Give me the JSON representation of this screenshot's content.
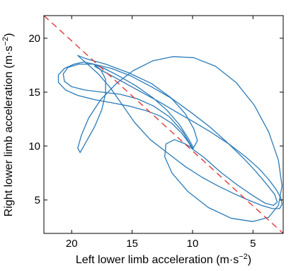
{
  "chart_data": {
    "type": "line",
    "xlabel": "Left lower limb acceleration (m·s",
    "xlabel_sup": "−2",
    "xlabel_end": ")",
    "ylabel": "Right lower limb acceleration (m·s",
    "ylabel_sup": "−2",
    "ylabel_end": ")",
    "x_reversed": true,
    "y_reversed": true,
    "xlim": [
      22.3,
      2.5
    ],
    "ylim": [
      22.1,
      1.9
    ],
    "xticks": [
      20,
      15,
      10,
      5
    ],
    "yticks": [
      5,
      10,
      15,
      20
    ],
    "xtick_labels": [
      "20",
      "15",
      "10",
      "5"
    ],
    "ytick_labels": [
      "5",
      "10",
      "15",
      "20"
    ],
    "grid": false,
    "series": [
      {
        "color": "#2b7bb9",
        "style": "solid",
        "x": [
          10.0,
          9.6,
          9.9,
          10.6,
          11.8,
          13.4,
          15.3,
          17.2,
          18.8,
          19.5,
          19.3,
          18.7,
          17.8,
          16.8,
          15.8,
          14.8,
          13.5,
          12.0,
          10.6,
          9.2,
          7.9,
          6.6,
          5.4,
          4.3,
          3.4,
          2.8,
          2.6,
          2.7,
          3.1,
          3.7,
          4.5,
          5.6,
          7.0,
          8.5,
          10.0,
          11.4,
          12.6,
          13.9,
          15.2,
          16.5,
          17.5,
          18.1,
          18.0,
          17.3,
          16.1,
          14.7,
          13.3,
          12.1,
          11.1,
          10.4,
          10.0,
          10.0
        ],
        "y": [
          9.7,
          10.5,
          11.6,
          13.0,
          14.5,
          15.8,
          16.8,
          17.6,
          18.1,
          18.4,
          18.2,
          17.6,
          16.7,
          15.4,
          13.8,
          12.2,
          10.6,
          9.3,
          8.1,
          7.1,
          6.3,
          5.6,
          5.0,
          4.5,
          4.2,
          4.2,
          4.6,
          5.2,
          6.0,
          6.9,
          7.9,
          9.0,
          10.2,
          11.3,
          12.3,
          13.2,
          14.0,
          14.8,
          15.6,
          16.4,
          17.0,
          17.4,
          17.5,
          17.2,
          16.5,
          15.6,
          14.5,
          13.3,
          12.0,
          10.8,
          10.0,
          9.7
        ]
      },
      {
        "color": "#2b7bb9",
        "style": "solid",
        "x": [
          10.0,
          10.8,
          11.9,
          13.2,
          14.6,
          16.0,
          17.5,
          18.9,
          20.0,
          20.6,
          20.7,
          20.3,
          19.4,
          18.2,
          16.7,
          15.1,
          13.4,
          11.7,
          10.1,
          8.6,
          7.2,
          5.9,
          4.8,
          3.9,
          3.2,
          3.0,
          3.3,
          4.0,
          5.0,
          6.3,
          7.7,
          9.0,
          10.1,
          10.0
        ],
        "y": [
          9.8,
          11.3,
          12.7,
          13.7,
          14.4,
          14.8,
          15.0,
          15.2,
          15.5,
          16.0,
          16.7,
          17.3,
          17.6,
          17.6,
          17.2,
          16.5,
          15.5,
          14.4,
          13.1,
          11.8,
          10.4,
          9.0,
          7.7,
          6.5,
          5.5,
          4.8,
          4.5,
          4.7,
          5.4,
          6.4,
          7.6,
          8.9,
          9.8,
          9.8
        ]
      },
      {
        "color": "#2b7bb9",
        "style": "solid",
        "x": [
          10.0,
          10.3,
          10.9,
          11.7,
          12.7,
          13.9,
          15.2,
          16.6,
          18.1,
          19.5,
          20.5,
          21.1,
          21.1,
          20.6,
          19.8,
          19.0,
          18.2,
          17.6,
          17.2,
          17.2,
          17.5,
          18.1,
          18.8,
          19.3,
          19.5,
          19.2,
          18.6,
          17.6,
          16.3,
          14.9,
          13.3,
          11.6,
          9.9,
          8.1,
          6.4,
          4.9,
          3.7,
          2.9,
          2.6,
          2.9,
          3.7,
          5.0,
          6.8,
          8.7,
          10.4,
          11.7,
          12.3,
          12.2,
          11.5,
          10.6,
          10.0
        ],
        "y": [
          9.7,
          10.3,
          11.2,
          12.1,
          12.8,
          13.3,
          13.7,
          14.0,
          14.3,
          14.7,
          15.2,
          15.9,
          16.6,
          17.2,
          17.6,
          17.8,
          17.6,
          17.1,
          16.2,
          14.9,
          13.4,
          11.8,
          10.4,
          9.4,
          9.8,
          11.0,
          12.6,
          14.3,
          15.8,
          17.0,
          17.9,
          18.3,
          18.2,
          17.4,
          15.9,
          13.8,
          11.3,
          8.7,
          6.3,
          4.5,
          3.4,
          3.0,
          3.3,
          4.3,
          5.8,
          7.5,
          9.0,
          10.2,
          10.6,
          10.2,
          9.8
        ]
      },
      {
        "color": "#e03c3c",
        "style": "dashed",
        "x": [
          22.3,
          2.5
        ],
        "y": [
          22.1,
          1.9
        ]
      }
    ]
  }
}
